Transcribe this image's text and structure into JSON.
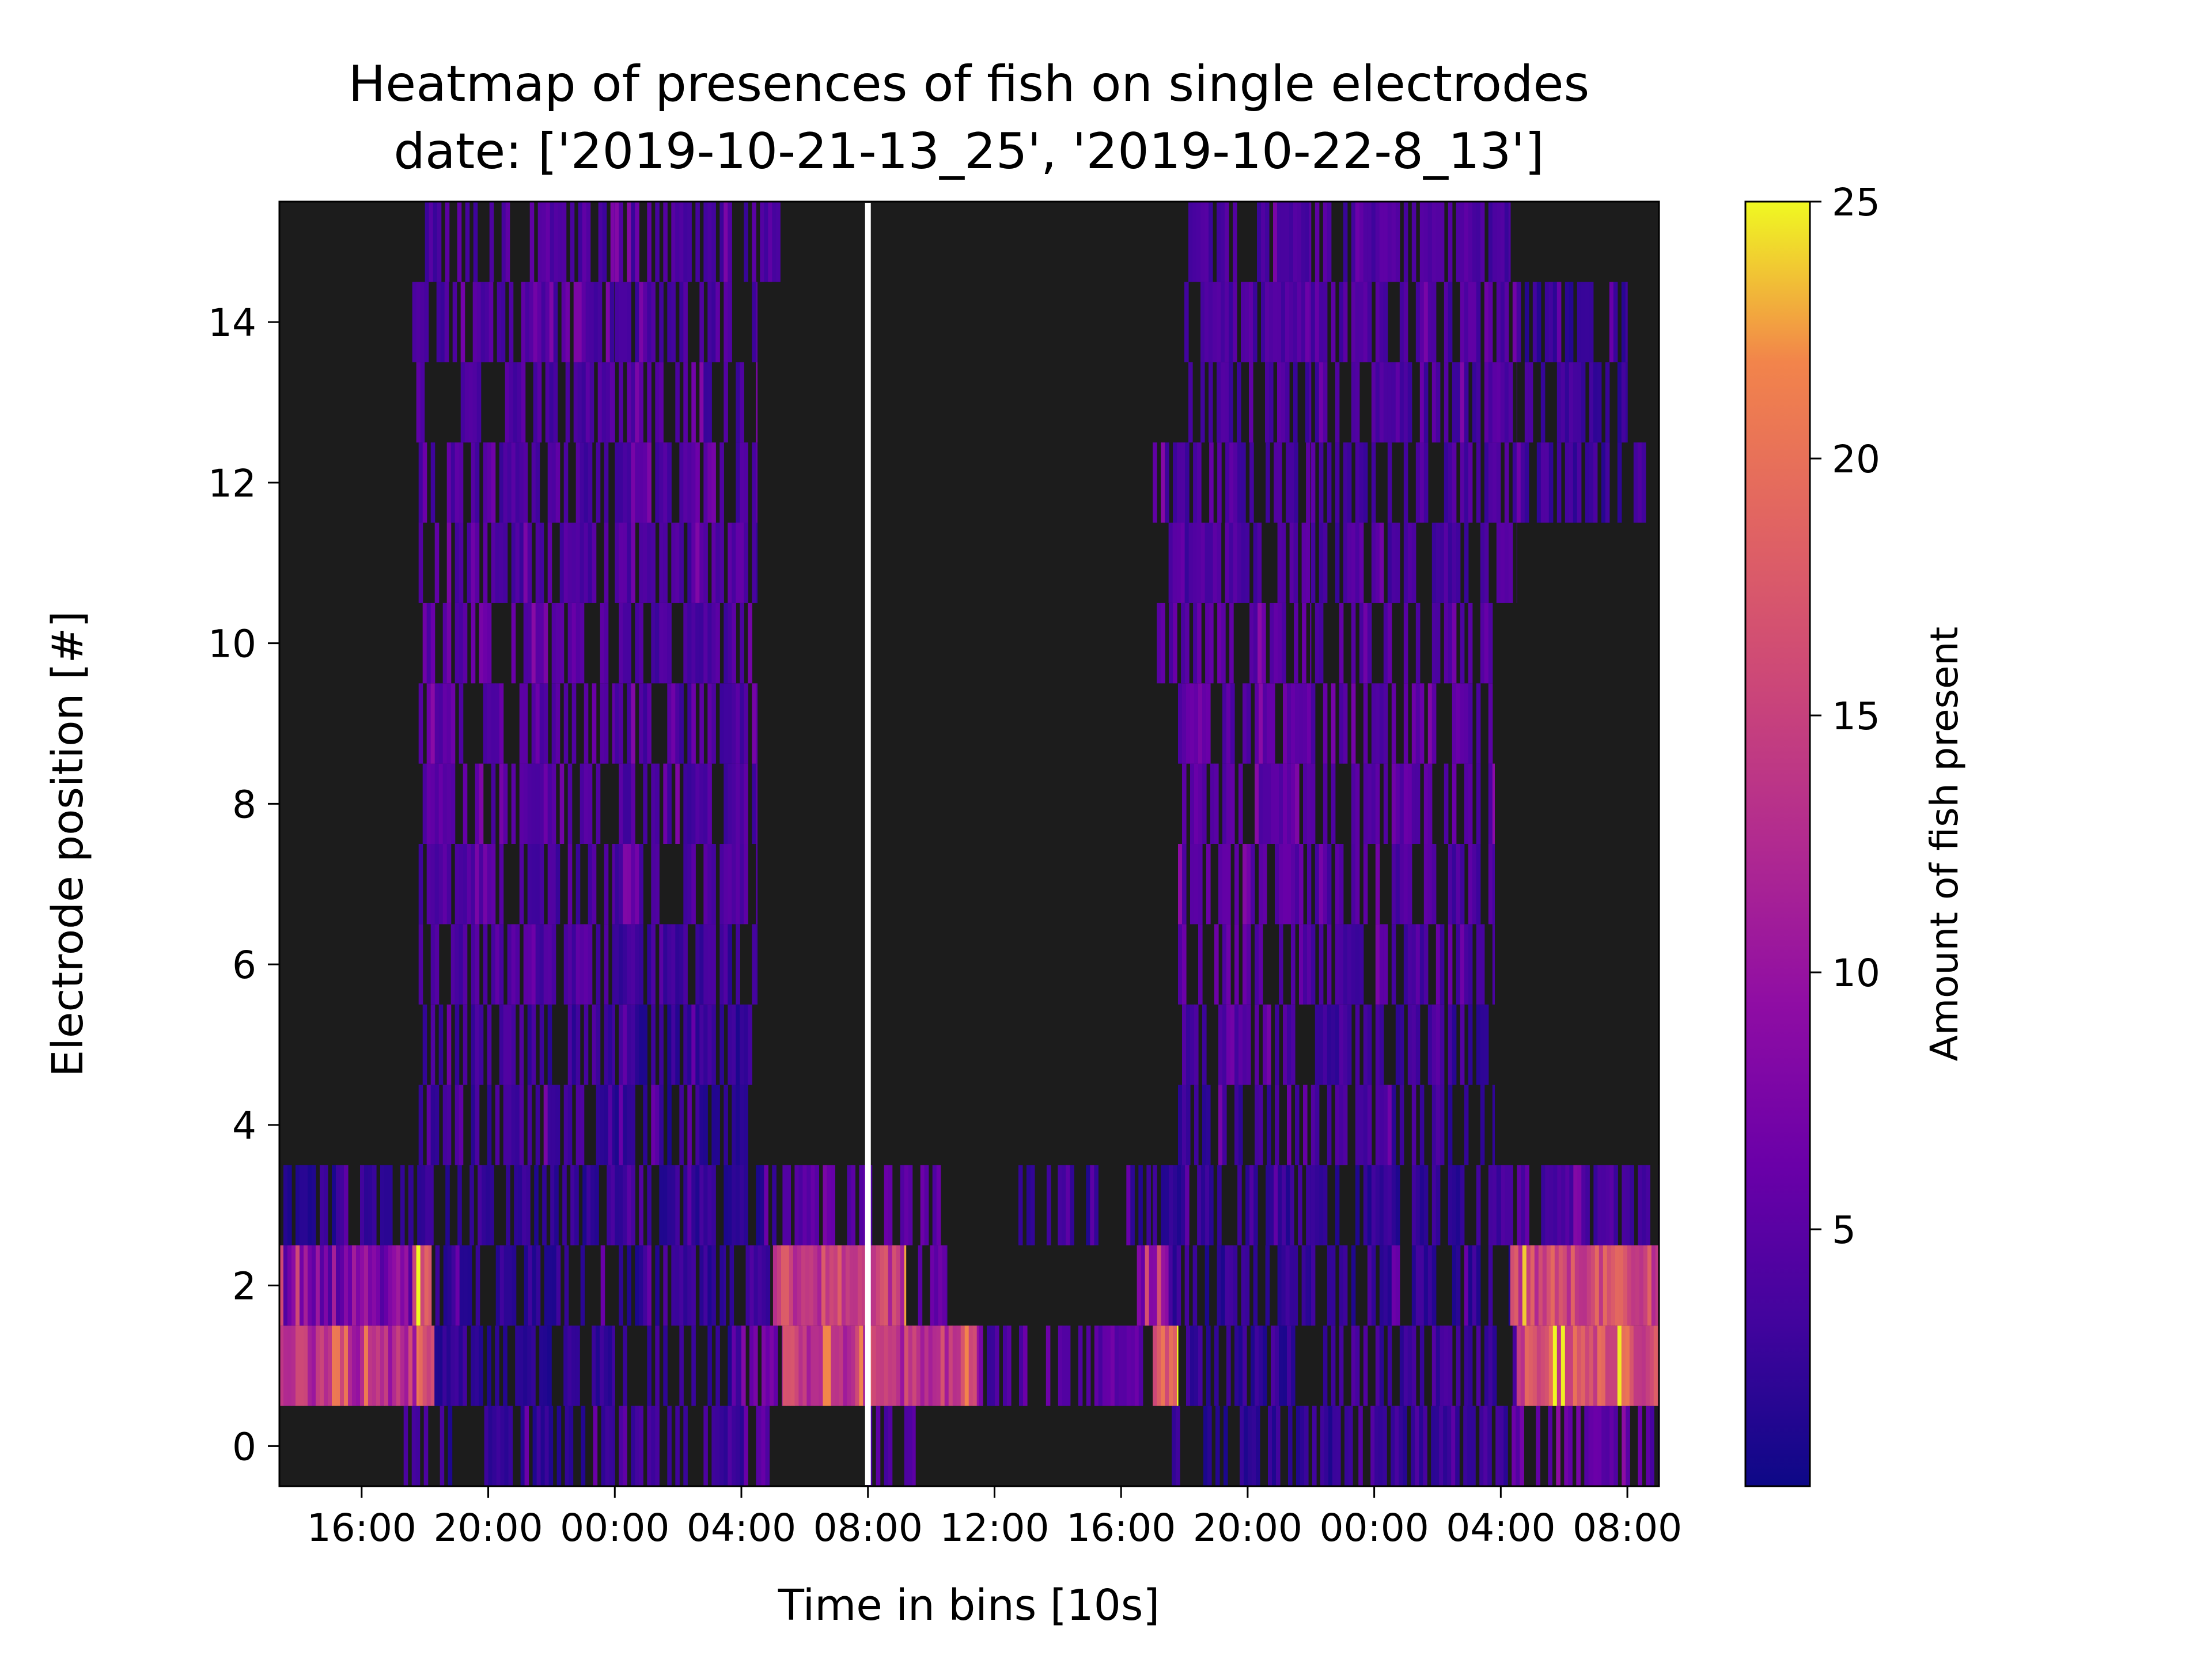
{
  "chart_data": {
    "type": "heatmap",
    "title": "Heatmap of presences of fish on single electrodes",
    "subtitle": "date: ['2019-10-21-13_25', '2019-10-22-8_13']",
    "xlabel": "Time in bins [10s]",
    "ylabel": "Electrode position [#]",
    "colorbar_label": "Amount of fish present",
    "colormap": "plasma",
    "background_color": "#1c1c1c",
    "colorbar_range": [
      0,
      25
    ],
    "colorbar_ticks": [
      "5",
      "10",
      "15",
      "20",
      "25"
    ],
    "x_ticks": [
      "16:00",
      "20:00",
      "00:00",
      "04:00",
      "08:00",
      "12:00",
      "16:00",
      "20:00",
      "00:00",
      "04:00",
      "08:00"
    ],
    "y_ticks": [
      "0",
      "2",
      "4",
      "6",
      "8",
      "10",
      "12",
      "14"
    ],
    "ylim": [
      -0.5,
      15.5
    ],
    "xlim_hours": [
      13.4,
      33.0
    ],
    "day_separator_hour": 32.0,
    "rows": [
      {
        "electrode": 0,
        "segments": [
          [
            17.2,
            18.6,
            4
          ],
          [
            18.6,
            24.0,
            2
          ],
          [
            24.0,
            28.5,
            3
          ],
          [
            28.5,
            29.2,
            5
          ],
          [
            32.0,
            33.5,
            4
          ],
          [
            41.6,
            42.6,
            3
          ],
          [
            42.6,
            47.5,
            2
          ],
          [
            47.5,
            52.6,
            3
          ],
          [
            52.6,
            54.8,
            6
          ],
          [
            54.8,
            57.0,
            5
          ]
        ]
      },
      {
        "electrode": 1,
        "segments": [
          [
            13.4,
            17.8,
            13
          ],
          [
            17.8,
            18.3,
            18
          ],
          [
            18.3,
            24.0,
            2
          ],
          [
            24.0,
            28.0,
            2
          ],
          [
            28.0,
            29.3,
            7
          ],
          [
            29.3,
            32.0,
            14
          ],
          [
            32.0,
            35.5,
            14
          ],
          [
            35.5,
            37.5,
            4
          ],
          [
            37.5,
            41.0,
            5
          ],
          [
            41.0,
            41.8,
            19
          ],
          [
            41.8,
            46.0,
            2
          ],
          [
            46.0,
            52.5,
            3
          ],
          [
            52.5,
            57.0,
            17
          ]
        ]
      },
      {
        "electrode": 2,
        "segments": [
          [
            13.4,
            17.6,
            8
          ],
          [
            17.6,
            18.2,
            19
          ],
          [
            18.2,
            24.0,
            2
          ],
          [
            24.0,
            27.5,
            2
          ],
          [
            27.5,
            29.0,
            3
          ],
          [
            29.0,
            32.0,
            15
          ],
          [
            32.0,
            33.2,
            15
          ],
          [
            33.2,
            34.5,
            6
          ],
          [
            40.5,
            41.5,
            9
          ],
          [
            41.5,
            46.0,
            2
          ],
          [
            46.0,
            52.3,
            2
          ],
          [
            52.3,
            57.0,
            16
          ]
        ]
      },
      {
        "electrode": 3,
        "segments": [
          [
            13.4,
            17.5,
            2
          ],
          [
            17.5,
            24.0,
            2
          ],
          [
            24.0,
            29.3,
            2
          ],
          [
            29.3,
            32.0,
            5
          ],
          [
            32.0,
            34.3,
            5
          ],
          [
            36.5,
            38.0,
            2
          ],
          [
            38.0,
            41.0,
            2
          ],
          [
            41.0,
            46.0,
            2
          ],
          [
            46.0,
            52.0,
            2
          ],
          [
            52.0,
            57.0,
            4
          ]
        ]
      },
      {
        "electrode": 4,
        "segments": [
          [
            17.8,
            24.0,
            3
          ],
          [
            24.0,
            28.5,
            2
          ],
          [
            41.8,
            46.0,
            3
          ],
          [
            46.0,
            51.8,
            3
          ]
        ]
      },
      {
        "electrode": 5,
        "segments": [
          [
            17.8,
            24.0,
            3
          ],
          [
            24.0,
            28.5,
            2
          ],
          [
            41.8,
            46.0,
            4
          ],
          [
            46.0,
            51.8,
            3
          ]
        ]
      },
      {
        "electrode": 6,
        "segments": [
          [
            17.8,
            24.0,
            4
          ],
          [
            24.0,
            28.5,
            3
          ],
          [
            41.8,
            46.0,
            5
          ],
          [
            46.0,
            51.8,
            4
          ]
        ]
      },
      {
        "electrode": 7,
        "segments": [
          [
            17.8,
            24.0,
            4
          ],
          [
            24.0,
            28.5,
            4
          ],
          [
            41.8,
            46.0,
            5
          ],
          [
            46.0,
            51.8,
            4
          ]
        ]
      },
      {
        "electrode": 8,
        "segments": [
          [
            17.8,
            24.0,
            5
          ],
          [
            24.0,
            28.5,
            4
          ],
          [
            41.8,
            46.0,
            5
          ],
          [
            46.0,
            51.8,
            5
          ]
        ]
      },
      {
        "electrode": 9,
        "segments": [
          [
            17.8,
            24.0,
            5
          ],
          [
            24.0,
            28.5,
            4
          ],
          [
            41.8,
            46.0,
            5
          ],
          [
            46.0,
            51.8,
            5
          ]
        ]
      },
      {
        "electrode": 10,
        "segments": [
          [
            17.8,
            24.0,
            5
          ],
          [
            24.0,
            28.5,
            4
          ],
          [
            41.0,
            46.0,
            5
          ],
          [
            46.0,
            52.0,
            5
          ]
        ]
      },
      {
        "electrode": 11,
        "segments": [
          [
            17.8,
            24.0,
            4
          ],
          [
            24.0,
            28.5,
            4
          ],
          [
            41.5,
            46.0,
            4
          ],
          [
            46.0,
            52.5,
            4
          ]
        ]
      },
      {
        "electrode": 12,
        "segments": [
          [
            17.8,
            24.0,
            4
          ],
          [
            24.0,
            28.5,
            4
          ],
          [
            41.0,
            46.0,
            4
          ],
          [
            46.0,
            52.5,
            4
          ],
          [
            52.5,
            57.0,
            3
          ]
        ]
      },
      {
        "electrode": 13,
        "segments": [
          [
            17.6,
            24.0,
            4
          ],
          [
            24.0,
            28.5,
            4
          ],
          [
            42.0,
            46.0,
            4
          ],
          [
            46.0,
            52.5,
            4
          ],
          [
            52.5,
            56.0,
            3
          ]
        ]
      },
      {
        "electrode": 14,
        "segments": [
          [
            17.6,
            24.0,
            4
          ],
          [
            24.0,
            28.5,
            4
          ],
          [
            42.0,
            46.0,
            4
          ],
          [
            46.0,
            52.5,
            4
          ],
          [
            52.5,
            56.0,
            2
          ]
        ]
      },
      {
        "electrode": 15,
        "segments": [
          [
            18.0,
            24.0,
            4
          ],
          [
            24.0,
            29.3,
            4
          ],
          [
            42.0,
            46.0,
            4
          ],
          [
            46.0,
            52.3,
            4
          ]
        ]
      }
    ]
  }
}
